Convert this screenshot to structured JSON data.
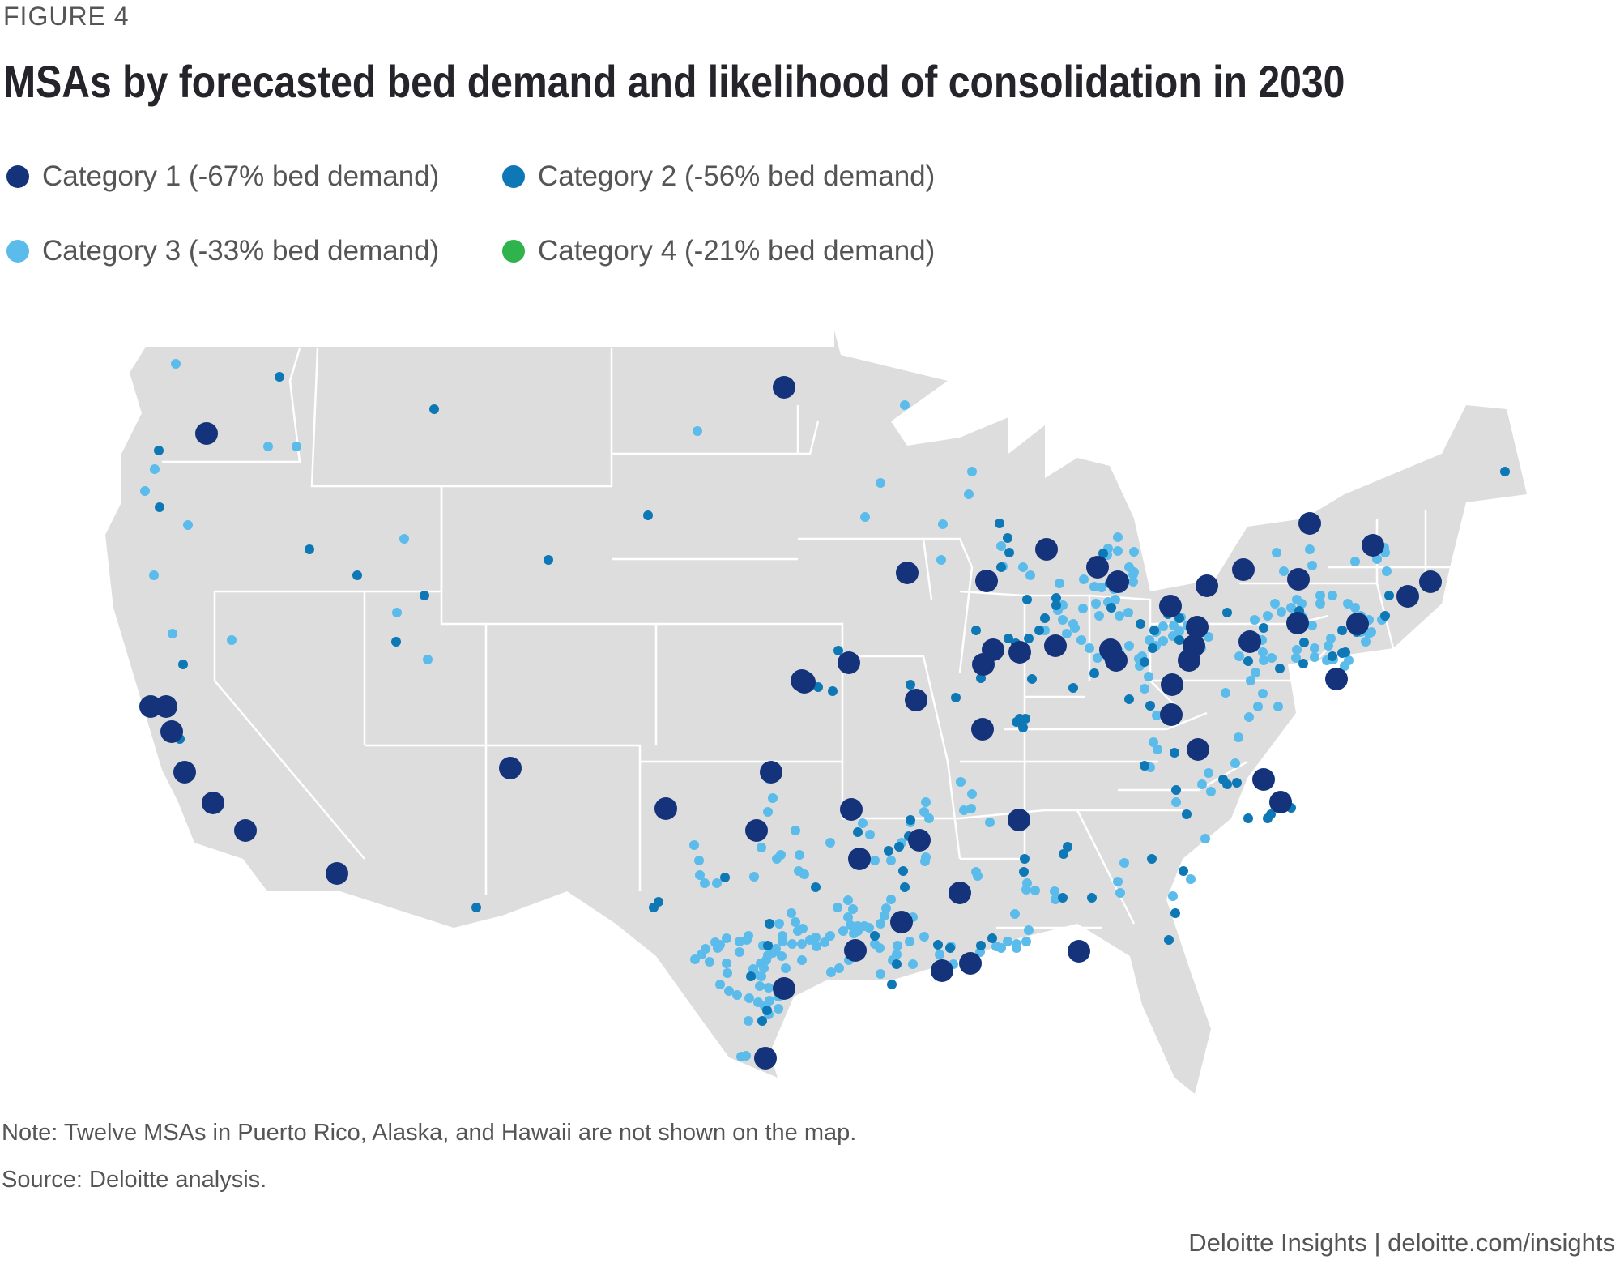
{
  "figure_label": "FIGURE 4",
  "title": "MSAs by forecasted bed demand and likelihood of consolidation in 2030",
  "legend": [
    {
      "label": "Category 1 (-67% bed demand)",
      "color": "#14337a"
    },
    {
      "label": "Category 2 (-56% bed demand)",
      "color": "#0d78b5"
    },
    {
      "label": "Category 3 (-33% bed demand)",
      "color": "#5bbcec"
    },
    {
      "label": "Category 4 (-21% bed demand)",
      "color": "#2fb34c"
    }
  ],
  "map": {
    "region": "Contiguous United States",
    "land_color": "#dcdddc",
    "border_color": "#ffffff"
  },
  "note": "Note: Twelve MSAs in Puerto Rico, Alaska, and Hawaii are not shown on the map.",
  "source": "Source: Deloitte analysis.",
  "footer": {
    "brand": "Deloitte Insights",
    "separator": "|",
    "url": "deloitte.com/insights"
  }
}
